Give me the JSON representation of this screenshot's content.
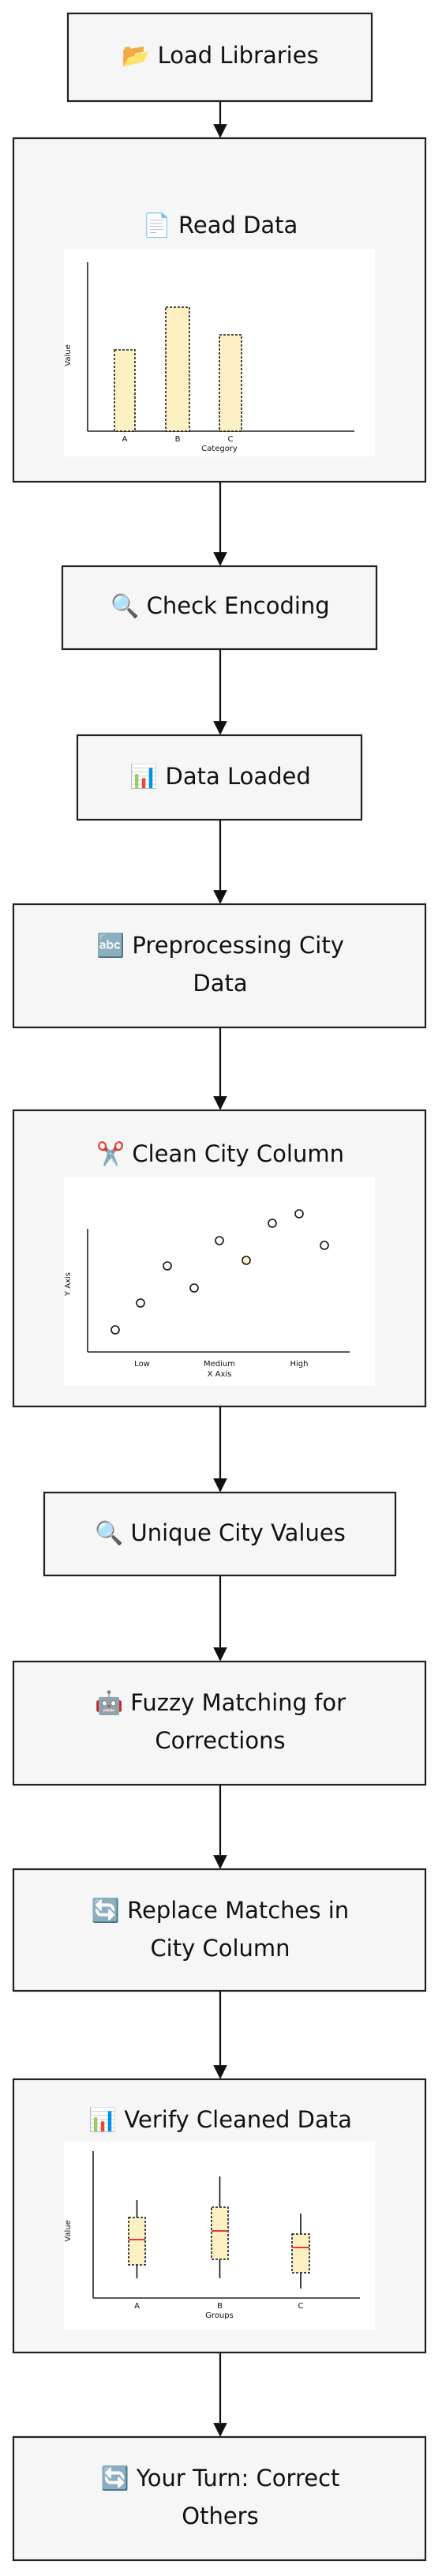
{
  "nodes": [
    {
      "lines": [
        "📂 Load Libraries"
      ]
    },
    {
      "lines": [
        "📄 Read Data"
      ],
      "chart": {
        "type": "bar",
        "y_label": "Value",
        "x_label": "Category",
        "categories": [
          "A",
          "B",
          "C"
        ]
      }
    },
    {
      "lines": [
        "🔍 Check Encoding"
      ]
    },
    {
      "lines": [
        "📊 Data Loaded"
      ]
    },
    {
      "lines": [
        "🔤 Preprocessing City",
        "Data"
      ]
    },
    {
      "lines": [
        "✂️ Clean City Column"
      ],
      "chart": {
        "type": "scatter",
        "y_label": "Y Axis",
        "x_label": "X Axis",
        "categories": [
          "Low",
          "Medium",
          "High"
        ]
      }
    },
    {
      "lines": [
        "🔍 Unique City Values"
      ]
    },
    {
      "lines": [
        "🤖 Fuzzy Matching for",
        "Corrections"
      ]
    },
    {
      "lines": [
        "🔄 Replace Matches in",
        "City Column"
      ]
    },
    {
      "lines": [
        "📊 Verify Cleaned Data"
      ],
      "chart": {
        "type": "box",
        "y_label": "Value",
        "x_label": "Groups",
        "categories": [
          "A",
          "B",
          "C"
        ]
      }
    },
    {
      "lines": [
        "🔄 Your Turn: Correct",
        "Others"
      ]
    }
  ]
}
